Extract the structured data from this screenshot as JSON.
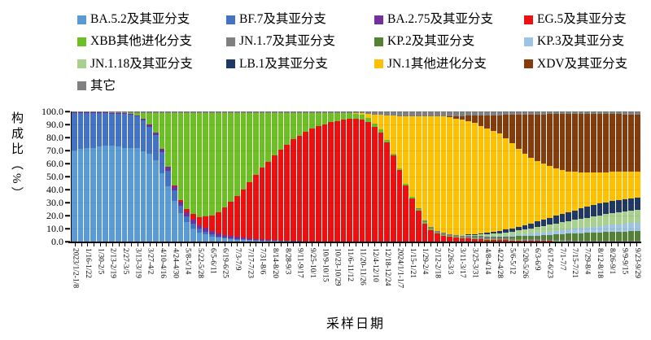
{
  "chart_data": {
    "type": "bar",
    "stacked": true,
    "title": "",
    "xlabel": "采样日期",
    "ylabel": "构成比（%）",
    "ylim": [
      0,
      100
    ],
    "grid": "faint horizontal at 10% steps",
    "legend_position": "top, 4 columns",
    "x_count": 91,
    "x_note": "weekly bars from 2023/1/2 to 2024/9/23; axis labels every second week",
    "y_tick_labels": [
      "100.0",
      "90.0",
      "80.0",
      "70.0",
      "60.0",
      "50.0",
      "40.0",
      "30.0",
      "20.0",
      "10.0",
      "0.0"
    ],
    "x_tick_labels": [
      "2023/1/2-1/8",
      "1/16-1/22",
      "1/30-2/5",
      "2/13-2/19",
      "2/27-3/5",
      "3/13-3/19",
      "3/27-4/2",
      "4/10-4/16",
      "4/24-4/30",
      "5/8-5/14",
      "5/22-5/28",
      "6/5-6/11",
      "6/19-6/25",
      "7/3-7/9",
      "7/17-7/23",
      "7/31-8/6",
      "8/14-8/20",
      "8/28-9/3",
      "9/11-9/17",
      "9/25-10/1",
      "10/9-10/15",
      "10/23-10/29",
      "11/6-11/12",
      "11/20-11/26",
      "12/4-12/10",
      "12/18-12/24",
      "2024/1/1-1/7",
      "1/15-1/21",
      "1/29-2/4",
      "2/12-2/18",
      "2/26-3/3",
      "3/11-3/17",
      "3/25-3/31",
      "4/8-4/14",
      "4/22-4/28",
      "5/6-5/12",
      "5/20-5/26",
      "6/3-6/9",
      "6/17-6/23",
      "7/1-7/7",
      "7/15-7/21",
      "7/29-8/4",
      "8/12-8/18",
      "8/26-9/1",
      "9/9-9/15",
      "9/23-9/29"
    ],
    "series": [
      {
        "id": "ba52",
        "name": "BA.5.2及其亚分支",
        "color": "#5B9BD5",
        "values": [
          70,
          71,
          72,
          72,
          73,
          74,
          74,
          73,
          72,
          72,
          71,
          69,
          67,
          62,
          52,
          42,
          31,
          22,
          15,
          10,
          7,
          5.5,
          4,
          3,
          2.2,
          2,
          1.5,
          1.2,
          1,
          0.8,
          0.6,
          0.5,
          0.4,
          0.3,
          0.3,
          0.2,
          0.2,
          0.1,
          0.1,
          0.1,
          0.1,
          0.1,
          0.1,
          0.1,
          0,
          0,
          0,
          0,
          0,
          0,
          0,
          0,
          0,
          0,
          0,
          0,
          0,
          0,
          0,
          0,
          0,
          0,
          0,
          0,
          0,
          0,
          0,
          0,
          0,
          0,
          0,
          0,
          0,
          0,
          0,
          0,
          0,
          0,
          0,
          0,
          0,
          0,
          0,
          0,
          0,
          0,
          0,
          0,
          0,
          0,
          0
        ]
      },
      {
        "id": "bf7",
        "name": "BF.7及其亚分支",
        "color": "#4472C4",
        "values": [
          29,
          28,
          27,
          27,
          26,
          25,
          24.3,
          25.3,
          26.3,
          25.3,
          24,
          23,
          20,
          19,
          16,
          12,
          8,
          5.5,
          4.5,
          3.5,
          2.8,
          2,
          1.5,
          1,
          0.8,
          0.6,
          0.5,
          0.4,
          0.3,
          0.2,
          0.2,
          0.1,
          0.1,
          0.1,
          0.1,
          0.1,
          0,
          0,
          0,
          0,
          0,
          0,
          0,
          0,
          0,
          0,
          0,
          0,
          0,
          0,
          0,
          0,
          0,
          0,
          0,
          0,
          0,
          0,
          0,
          0,
          0,
          0,
          0,
          0,
          0,
          0,
          0,
          0,
          0,
          0,
          0,
          0,
          0,
          0,
          0,
          0,
          0,
          0,
          0,
          0,
          0,
          0,
          0,
          0,
          0,
          0,
          0,
          0,
          0,
          0,
          0
        ]
      },
      {
        "id": "ba275",
        "name": "BA.2.75及其亚分支",
        "color": "#7030A0",
        "values": [
          0.3,
          0.3,
          0.3,
          0.3,
          0.3,
          0.3,
          0.7,
          0.7,
          0.7,
          0.7,
          1,
          1.5,
          2,
          2,
          2.5,
          3,
          3,
          3,
          3,
          3.5,
          3,
          3,
          2.8,
          2.5,
          2.2,
          2,
          1.8,
          1.5,
          1.2,
          1,
          0.8,
          0.6,
          0.5,
          0.4,
          0.3,
          0.2,
          0.2,
          0.1,
          0.1,
          0.1,
          0.1,
          0,
          0,
          0,
          0,
          0,
          0,
          0,
          0,
          0,
          0,
          0,
          0,
          0,
          0,
          0,
          0,
          0,
          0,
          0,
          0,
          0,
          0,
          0,
          0,
          0,
          0,
          0,
          0,
          0,
          0,
          0,
          0,
          0,
          0,
          0,
          0,
          0,
          0,
          0,
          0,
          0,
          0,
          0,
          0,
          0,
          0,
          0,
          0,
          0,
          0
        ]
      },
      {
        "id": "eg5",
        "name": "EG.5及其亚分支",
        "color": "#ED1010",
        "values": [
          0,
          0,
          0,
          0,
          0,
          0,
          0,
          0,
          0,
          0,
          0,
          0,
          0,
          0,
          0,
          0,
          0.5,
          1,
          2.5,
          4,
          6,
          9,
          12,
          16,
          21,
          26,
          31,
          37,
          43,
          49,
          55,
          60,
          65,
          70,
          74,
          78,
          81,
          84,
          86.5,
          88.5,
          90,
          91.5,
          92.5,
          93.5,
          94,
          94.2,
          94,
          92,
          88,
          84,
          76,
          66,
          55,
          43,
          33,
          24,
          14,
          9,
          6,
          4.5,
          3.5,
          3,
          2.6,
          2.3,
          2,
          1.8,
          1.5,
          1.3,
          1.2,
          1,
          0.9,
          0.8,
          0.7,
          0.6,
          0.5,
          0.4,
          0.4,
          0.3,
          0.3,
          0.2,
          0.2,
          0.2,
          0.1,
          0.1,
          0.1,
          0.1,
          0.1,
          0.1,
          0.1,
          0.1,
          0.1
        ]
      },
      {
        "id": "xbb",
        "name": "XBB其他进化分支",
        "color": "#6DC024",
        "values": [
          0,
          0,
          0,
          0,
          0,
          0,
          0,
          0,
          0,
          1,
          2,
          4.5,
          9,
          15,
          27,
          41,
          55.5,
          67,
          74,
          78,
          80.2,
          79.5,
          78.7,
          76.5,
          72.8,
          68.2,
          64.2,
          58.8,
          53.5,
          48,
          42.4,
          37.8,
          33,
          28.2,
          24.3,
          20.5,
          17.6,
          14.8,
          12.3,
          10.3,
          8.8,
          7.4,
          6.3,
          5.3,
          4.5,
          4.1,
          3.5,
          3,
          2.5,
          2.2,
          2,
          1.8,
          1.5,
          1.3,
          1.2,
          1.1,
          1,
          0.9,
          0.8,
          0.7,
          0.6,
          0.5,
          0.5,
          0.4,
          0.4,
          0.3,
          0.3,
          0.3,
          0.2,
          0.2,
          0.2,
          0.2,
          0.1,
          0.1,
          0.1,
          0.1,
          0.1,
          0.1,
          0.1,
          0.1,
          0.1,
          0.1,
          0.1,
          0.1,
          0.1,
          0.1,
          0.1,
          0.1,
          0.1,
          0.1,
          0.1
        ]
      },
      {
        "id": "jn17",
        "name": "JN.1.7及其亚分支",
        "color": "#7F7F7F",
        "values": [
          0,
          0,
          0,
          0,
          0,
          0,
          0,
          0,
          0,
          0,
          0,
          0,
          0,
          0,
          0,
          0,
          0,
          0,
          0,
          0,
          0,
          0,
          0,
          0,
          0,
          0,
          0,
          0,
          0,
          0,
          0,
          0,
          0,
          0,
          0,
          0,
          0,
          0,
          0,
          0,
          0,
          0,
          0,
          0,
          0,
          0,
          0,
          0,
          0,
          0,
          0,
          0,
          0,
          0.3,
          0.5,
          0.8,
          1,
          1.2,
          1.3,
          1.4,
          1.5,
          1.5,
          1.5,
          1.5,
          1.5,
          1.5,
          1.4,
          1.4,
          1.3,
          1.3,
          1.2,
          1.2,
          1.1,
          1,
          1,
          0.9,
          0.8,
          0.8,
          0.7,
          0.7,
          0.6,
          0.6,
          0.5,
          0.5,
          0.5,
          0.4,
          0.4,
          0.4,
          0.4,
          0.4,
          0.4
        ]
      },
      {
        "id": "kp2",
        "name": "KP.2及其亚分支",
        "color": "#548235",
        "values": [
          0,
          0,
          0,
          0,
          0,
          0,
          0,
          0,
          0,
          0,
          0,
          0,
          0,
          0,
          0,
          0,
          0,
          0,
          0,
          0,
          0,
          0,
          0,
          0,
          0,
          0,
          0,
          0,
          0,
          0,
          0,
          0,
          0,
          0,
          0,
          0,
          0,
          0,
          0,
          0,
          0,
          0,
          0,
          0,
          0,
          0,
          0,
          0,
          0,
          0,
          0,
          0,
          0,
          0,
          0,
          0,
          0,
          0,
          0,
          0,
          0,
          0,
          0,
          0.2,
          0.3,
          0.5,
          0.7,
          0.9,
          1.1,
          1.4,
          1.7,
          2,
          2.3,
          2.7,
          3.1,
          3.5,
          3.9,
          4.3,
          4.7,
          5,
          5.3,
          5.6,
          5.9,
          6.2,
          6.4,
          6.6,
          6.8,
          7,
          7.2,
          7.4,
          7.5
        ]
      },
      {
        "id": "kp3",
        "name": "KP.3及其亚分支",
        "color": "#9DC3E6",
        "values": [
          0,
          0,
          0,
          0,
          0,
          0,
          0,
          0,
          0,
          0,
          0,
          0,
          0,
          0,
          0,
          0,
          0,
          0,
          0,
          0,
          0,
          0,
          0,
          0,
          0,
          0,
          0,
          0,
          0,
          0,
          0,
          0,
          0,
          0,
          0,
          0,
          0,
          0,
          0,
          0,
          0,
          0,
          0,
          0,
          0,
          0,
          0,
          0,
          0,
          0,
          0,
          0,
          0,
          0,
          0,
          0,
          0,
          0,
          0,
          0,
          0,
          0,
          0,
          0,
          0,
          0.2,
          0.3,
          0.4,
          0.5,
          0.7,
          0.9,
          1.1,
          1.3,
          1.6,
          1.9,
          2.2,
          2.5,
          2.8,
          3.1,
          3.4,
          3.7,
          4,
          4.3,
          4.6,
          4.9,
          5.2,
          5.5,
          5.8,
          6.1,
          6.3,
          6.5
        ]
      },
      {
        "id": "jn118",
        "name": "JN.1.18及其亚分支",
        "color": "#A9D18E",
        "values": [
          0,
          0,
          0,
          0,
          0,
          0,
          0,
          0,
          0,
          0,
          0,
          0,
          0,
          0,
          0,
          0,
          0,
          0,
          0,
          0,
          0,
          0,
          0,
          0,
          0,
          0,
          0,
          0,
          0,
          0,
          0,
          0,
          0,
          0,
          0,
          0,
          0,
          0,
          0,
          0,
          0,
          0,
          0,
          0,
          0,
          0,
          0,
          0,
          0,
          0,
          0,
          0,
          0,
          0,
          0,
          0,
          0,
          0,
          0,
          0,
          0,
          0.3,
          0.5,
          0.7,
          0.9,
          1.1,
          1.4,
          1.7,
          2,
          2.4,
          2.8,
          3.2,
          3.6,
          4,
          4.4,
          4.8,
          5.2,
          5.6,
          6,
          6.4,
          6.8,
          7.2,
          7.6,
          8,
          8.3,
          8.6,
          8.9,
          9.1,
          9.3,
          9.4,
          9.5
        ]
      },
      {
        "id": "lb1",
        "name": "LB.1及其亚分支",
        "color": "#1F3864",
        "values": [
          0,
          0,
          0,
          0,
          0,
          0,
          0,
          0,
          0,
          0,
          0,
          0,
          0,
          0,
          0,
          0,
          0,
          0,
          0,
          0,
          0,
          0,
          0,
          0,
          0,
          0,
          0,
          0,
          0,
          0,
          0,
          0,
          0,
          0,
          0,
          0,
          0,
          0,
          0,
          0,
          0,
          0,
          0,
          0,
          0,
          0,
          0,
          0,
          0,
          0,
          0,
          0,
          0,
          0,
          0,
          0,
          0,
          0,
          0,
          0,
          0,
          0,
          0,
          0.3,
          0.5,
          0.8,
          1.1,
          1.4,
          1.8,
          2.2,
          2.6,
          3,
          3.5,
          4,
          4.5,
          5,
          5.5,
          6,
          6.5,
          7,
          7.4,
          7.8,
          8.2,
          8.6,
          8.9,
          9.1,
          9.3,
          9.4,
          9.5,
          9.5,
          9.5
        ]
      },
      {
        "id": "jn1",
        "name": "JN.1其他进化分支",
        "color": "#FFC000",
        "values": [
          0,
          0,
          0,
          0,
          0,
          0,
          0,
          0,
          0,
          0,
          0,
          0,
          0,
          0,
          0,
          0,
          0,
          0,
          0,
          0,
          0,
          0,
          0,
          0,
          0,
          0,
          0,
          0,
          0,
          0,
          0,
          0,
          0,
          0,
          0,
          0,
          0,
          0,
          0,
          0,
          0,
          0,
          0,
          0,
          0,
          0.5,
          1,
          3,
          7,
          11.3,
          19,
          29.2,
          40,
          51.9,
          61.8,
          70.6,
          80.5,
          85.4,
          88.4,
          89.4,
          89.9,
          89.2,
          88.4,
          87.1,
          85.4,
          83,
          80.3,
          77.6,
          74.9,
          70.3,
          65.2,
          60,
          54.9,
          50.5,
          46.3,
          42.9,
          39.6,
          36.1,
          33.6,
          31.2,
          29.4,
          28,
          26.5,
          25,
          24,
          23.2,
          22.3,
          21.6,
          21.1,
          20.5,
          19.9
        ]
      },
      {
        "id": "xdv",
        "name": "XDV及其亚分支",
        "color": "#843C0C",
        "values": [
          0,
          0,
          0,
          0,
          0,
          0,
          0,
          0,
          0,
          0,
          0,
          0,
          0,
          0,
          0,
          0,
          0,
          0,
          0,
          0,
          0,
          0,
          0,
          0,
          0,
          0,
          0,
          0,
          0,
          0,
          0,
          0,
          0,
          0,
          0,
          0,
          0,
          0,
          0,
          0,
          0,
          0,
          0,
          0,
          0,
          0,
          0,
          0,
          0,
          0,
          0,
          0,
          0,
          0,
          0,
          0,
          0,
          0,
          0,
          0.5,
          1,
          2,
          3,
          4.5,
          6,
          8,
          10,
          12,
          14,
          18,
          22,
          26,
          30,
          33,
          36,
          38,
          40,
          42,
          43,
          44,
          44.5,
          45,
          45,
          45,
          44.8,
          44.6,
          44.4,
          44.2,
          44,
          44,
          44
        ]
      },
      {
        "id": "qita",
        "name": "其它",
        "color": "#808080",
        "values": [
          0.7,
          0.7,
          0.7,
          0.7,
          0.7,
          0.7,
          1,
          1,
          1,
          1,
          1,
          1,
          1,
          1,
          1,
          1,
          1,
          1,
          1,
          1,
          1,
          1,
          1,
          1,
          1,
          1,
          1,
          1,
          1,
          1,
          1,
          1,
          1,
          1,
          1,
          1,
          1,
          1,
          1,
          1,
          1,
          1,
          1,
          1,
          1,
          1.2,
          1.5,
          2,
          2.5,
          2.5,
          3,
          3,
          3.5,
          3.5,
          3.5,
          3.5,
          3.5,
          3.5,
          3.5,
          3.5,
          3.5,
          3.5,
          3.5,
          3,
          3,
          3,
          3,
          3,
          3,
          2.5,
          2.5,
          2.5,
          2.5,
          2.5,
          2.2,
          2.2,
          2,
          2,
          2,
          2,
          2,
          2,
          2,
          2,
          2,
          2,
          2,
          2,
          2.2,
          2.3,
          2.5
        ]
      }
    ]
  }
}
